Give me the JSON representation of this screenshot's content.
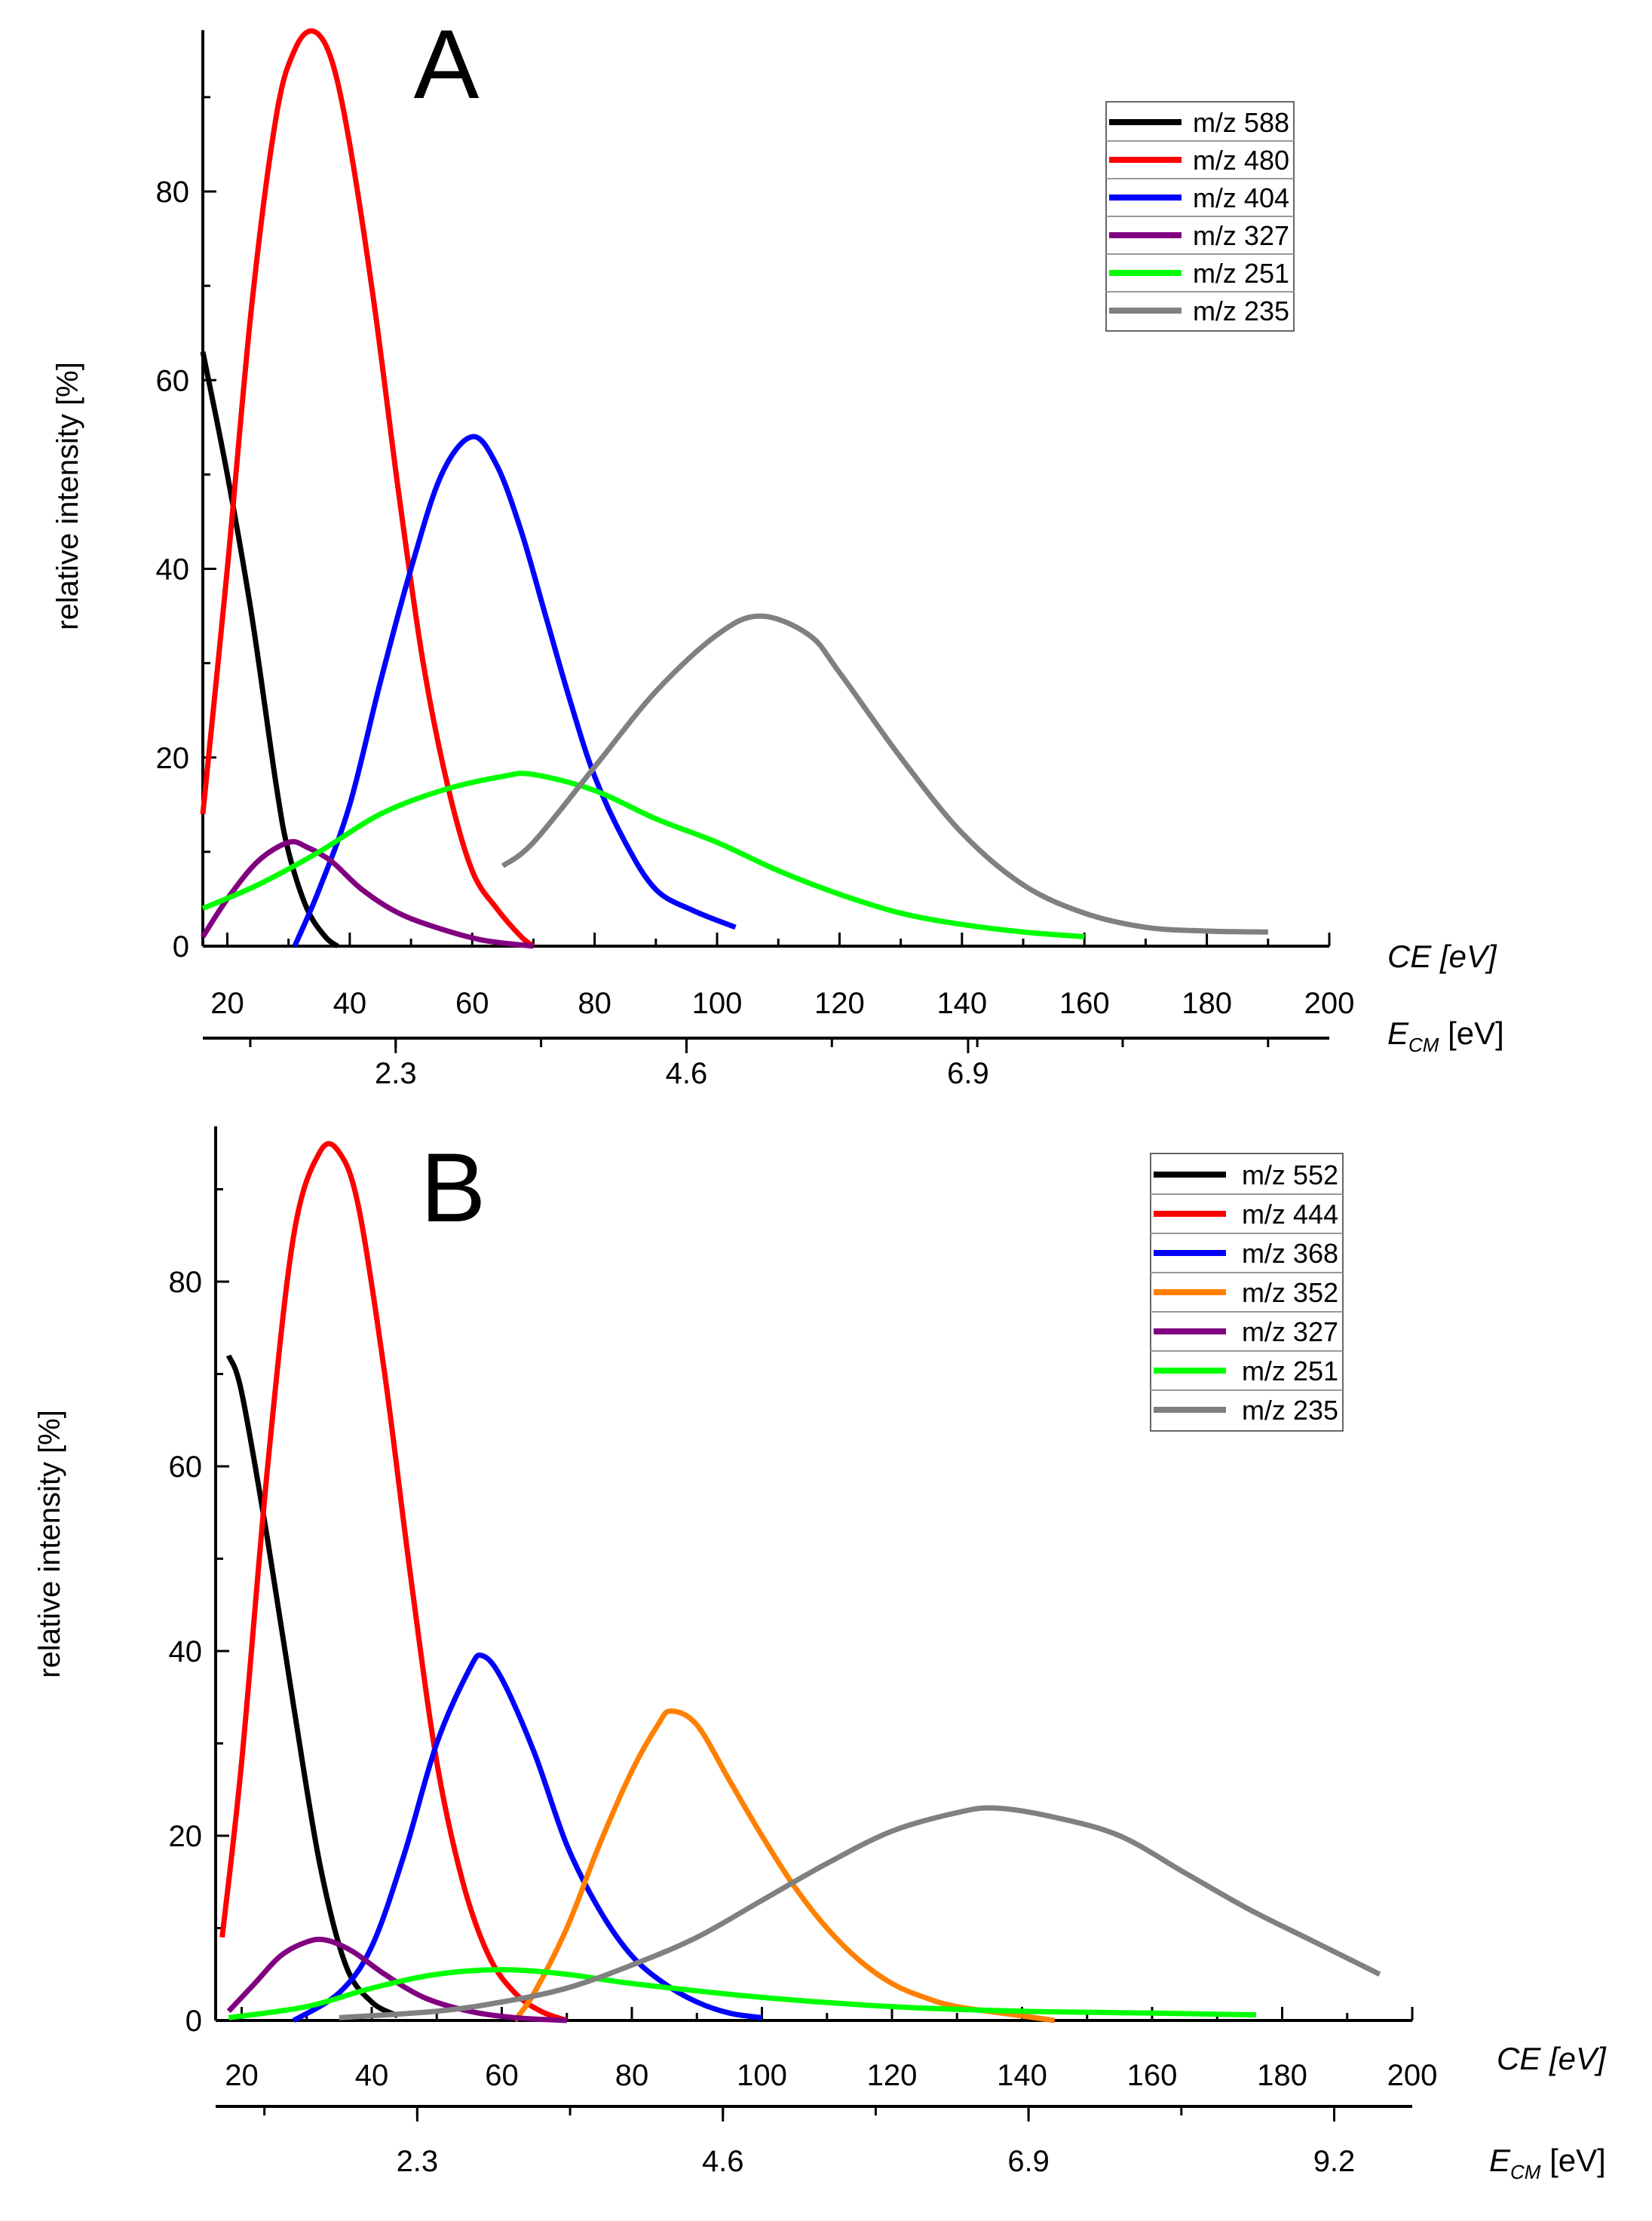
{
  "chart_data": [
    {
      "type": "line",
      "panel_label": "A",
      "xlabel": "CE [eV]",
      "x2label_main": "E",
      "x2label_sub": "CM",
      "x2label_unit": " [eV]",
      "ylabel": "relative intensity [%]",
      "xlim": [
        16,
        200
      ],
      "ylim": [
        0,
        97
      ],
      "xticks": [
        20,
        40,
        60,
        80,
        100,
        120,
        140,
        160,
        180,
        200
      ],
      "yticks": [
        0,
        20,
        40,
        60,
        80
      ],
      "x2ticks": [
        {
          "label": "2.3",
          "ce": 47.5
        },
        {
          "label": "4.6",
          "ce": 95
        },
        {
          "label": "6.9",
          "ce": 141
        }
      ],
      "legend_position": "top-right",
      "series": [
        {
          "name": "m/z 588",
          "color": "#000000",
          "points": [
            [
              16,
              63
            ],
            [
              20,
              50
            ],
            [
              24,
              35
            ],
            [
              28,
              17
            ],
            [
              30,
              10
            ],
            [
              33,
              4
            ],
            [
              36,
              1
            ],
            [
              38,
              0
            ]
          ]
        },
        {
          "name": "m/z 480",
          "color": "#ff0000",
          "points": [
            [
              16,
              14
            ],
            [
              20,
              40
            ],
            [
              24,
              68
            ],
            [
              28,
              88
            ],
            [
              31,
              95
            ],
            [
              34,
              97
            ],
            [
              37,
              94
            ],
            [
              40,
              85
            ],
            [
              44,
              68
            ],
            [
              48,
              48
            ],
            [
              52,
              30
            ],
            [
              56,
              17
            ],
            [
              60,
              8
            ],
            [
              64,
              4
            ],
            [
              68,
              1
            ],
            [
              70,
              0
            ]
          ]
        },
        {
          "name": "m/z 404",
          "color": "#0000ff",
          "points": [
            [
              31,
              0
            ],
            [
              35,
              6
            ],
            [
              40,
              15
            ],
            [
              45,
              28
            ],
            [
              50,
              40
            ],
            [
              55,
              50
            ],
            [
              60,
              54
            ],
            [
              64,
              51
            ],
            [
              68,
              44
            ],
            [
              72,
              35
            ],
            [
              76,
              26
            ],
            [
              80,
              18
            ],
            [
              85,
              11
            ],
            [
              90,
              6
            ],
            [
              96,
              3.8
            ],
            [
              103,
              2
            ]
          ]
        },
        {
          "name": "m/z 327",
          "color": "#800080",
          "points": [
            [
              16,
              1
            ],
            [
              20,
              5
            ],
            [
              25,
              9
            ],
            [
              30,
              11
            ],
            [
              33,
              10.5
            ],
            [
              37,
              9
            ],
            [
              42,
              6
            ],
            [
              48,
              3.5
            ],
            [
              55,
              1.8
            ],
            [
              62,
              0.6
            ],
            [
              70,
              0
            ]
          ]
        },
        {
          "name": "m/z 251",
          "color": "#00ff00",
          "points": [
            [
              16,
              4
            ],
            [
              25,
              6.5
            ],
            [
              35,
              10
            ],
            [
              45,
              14
            ],
            [
              55,
              16.5
            ],
            [
              65,
              18
            ],
            [
              70,
              18.2
            ],
            [
              80,
              16.5
            ],
            [
              90,
              13.5
            ],
            [
              100,
              11
            ],
            [
              110,
              8
            ],
            [
              120,
              5.5
            ],
            [
              130,
              3.5
            ],
            [
              140,
              2.3
            ],
            [
              150,
              1.5
            ],
            [
              160,
              1
            ]
          ]
        },
        {
          "name": "m/z 235",
          "color": "#808080",
          "points": [
            [
              65,
              8.5
            ],
            [
              70,
              11
            ],
            [
              80,
              19
            ],
            [
              90,
              27
            ],
            [
              100,
              33
            ],
            [
              107,
              35
            ],
            [
              115,
              33
            ],
            [
              120,
              29
            ],
            [
              130,
              20
            ],
            [
              140,
              12
            ],
            [
              150,
              6.5
            ],
            [
              160,
              3.5
            ],
            [
              170,
              2
            ],
            [
              180,
              1.6
            ],
            [
              190,
              1.5
            ]
          ]
        }
      ]
    },
    {
      "type": "line",
      "panel_label": "B",
      "xlabel": "CE [eV]",
      "x2label_main": "E",
      "x2label_sub": "CM",
      "x2label_unit": " [eV]",
      "ylabel": "relative intensity [%]",
      "xlim": [
        16,
        200
      ],
      "ylim": [
        0,
        97
      ],
      "xticks": [
        20,
        40,
        60,
        80,
        100,
        120,
        140,
        160,
        180,
        200
      ],
      "yticks": [
        0,
        20,
        40,
        60,
        80
      ],
      "x2ticks": [
        {
          "label": "2.3",
          "ce": 47
        },
        {
          "label": "4.6",
          "ce": 94
        },
        {
          "label": "6.9",
          "ce": 141
        },
        {
          "label": "9.2",
          "ce": 188
        }
      ],
      "legend_position": "top-right",
      "series": [
        {
          "name": "m/z 552",
          "color": "#000000",
          "points": [
            [
              18,
              72
            ],
            [
              20,
              68
            ],
            [
              24,
              52
            ],
            [
              28,
              34
            ],
            [
              32,
              17
            ],
            [
              36,
              6
            ],
            [
              40,
              2
            ],
            [
              44,
              0.5
            ]
          ]
        },
        {
          "name": "m/z 444",
          "color": "#ff0000",
          "points": [
            [
              17,
              9
            ],
            [
              20,
              28
            ],
            [
              24,
              60
            ],
            [
              28,
              85
            ],
            [
              32,
              94
            ],
            [
              35,
              94
            ],
            [
              38,
              88
            ],
            [
              42,
              70
            ],
            [
              46,
              48
            ],
            [
              50,
              28
            ],
            [
              54,
              15
            ],
            [
              58,
              7
            ],
            [
              62,
              3
            ],
            [
              66,
              1
            ],
            [
              70,
              0
            ]
          ]
        },
        {
          "name": "m/z 368",
          "color": "#0000ff",
          "points": [
            [
              28,
              0
            ],
            [
              35,
              3
            ],
            [
              40,
              8
            ],
            [
              45,
              18
            ],
            [
              50,
              30
            ],
            [
              55,
              38
            ],
            [
              57,
              39.5
            ],
            [
              60,
              37
            ],
            [
              65,
              29
            ],
            [
              70,
              19
            ],
            [
              75,
              12
            ],
            [
              80,
              7
            ],
            [
              85,
              4
            ],
            [
              90,
              2
            ],
            [
              95,
              0.8
            ],
            [
              100,
              0.3
            ]
          ]
        },
        {
          "name": "m/z 352",
          "color": "#ff8000",
          "points": [
            [
              62,
              0
            ],
            [
              65,
              3
            ],
            [
              70,
              10
            ],
            [
              75,
              19
            ],
            [
              80,
              27
            ],
            [
              84,
              32
            ],
            [
              86,
              33.5
            ],
            [
              90,
              32
            ],
            [
              95,
              26
            ],
            [
              100,
              20
            ],
            [
              105,
              14.5
            ],
            [
              110,
              10
            ],
            [
              115,
              6.5
            ],
            [
              120,
              4
            ],
            [
              125,
              2.5
            ],
            [
              130,
              1.5
            ],
            [
              140,
              0.5
            ],
            [
              145,
              0
            ]
          ]
        },
        {
          "name": "m/z 327",
          "color": "#800080",
          "points": [
            [
              18,
              1
            ],
            [
              22,
              4
            ],
            [
              26,
              7
            ],
            [
              30,
              8.5
            ],
            [
              33,
              8.7
            ],
            [
              37,
              7.5
            ],
            [
              42,
              5
            ],
            [
              48,
              2.5
            ],
            [
              55,
              1
            ],
            [
              62,
              0.3
            ],
            [
              70,
              0
            ]
          ]
        },
        {
          "name": "m/z 251",
          "color": "#00ff00",
          "points": [
            [
              18,
              0.3
            ],
            [
              30,
              1.5
            ],
            [
              40,
              3.5
            ],
            [
              50,
              5
            ],
            [
              60,
              5.5
            ],
            [
              70,
              5
            ],
            [
              80,
              4
            ],
            [
              100,
              2.5
            ],
            [
              120,
              1.5
            ],
            [
              140,
              1
            ],
            [
              160,
              0.8
            ],
            [
              176,
              0.6
            ]
          ]
        },
        {
          "name": "m/z 235",
          "color": "#808080",
          "points": [
            [
              35,
              0.3
            ],
            [
              50,
              1
            ],
            [
              60,
              2
            ],
            [
              70,
              3.5
            ],
            [
              80,
              6
            ],
            [
              90,
              9
            ],
            [
              100,
              13
            ],
            [
              110,
              17
            ],
            [
              120,
              20.5
            ],
            [
              130,
              22.5
            ],
            [
              136,
              23
            ],
            [
              145,
              22
            ],
            [
              155,
              20
            ],
            [
              165,
              16
            ],
            [
              175,
              12
            ],
            [
              185,
              8.5
            ],
            [
              195,
              5
            ]
          ]
        }
      ]
    }
  ]
}
